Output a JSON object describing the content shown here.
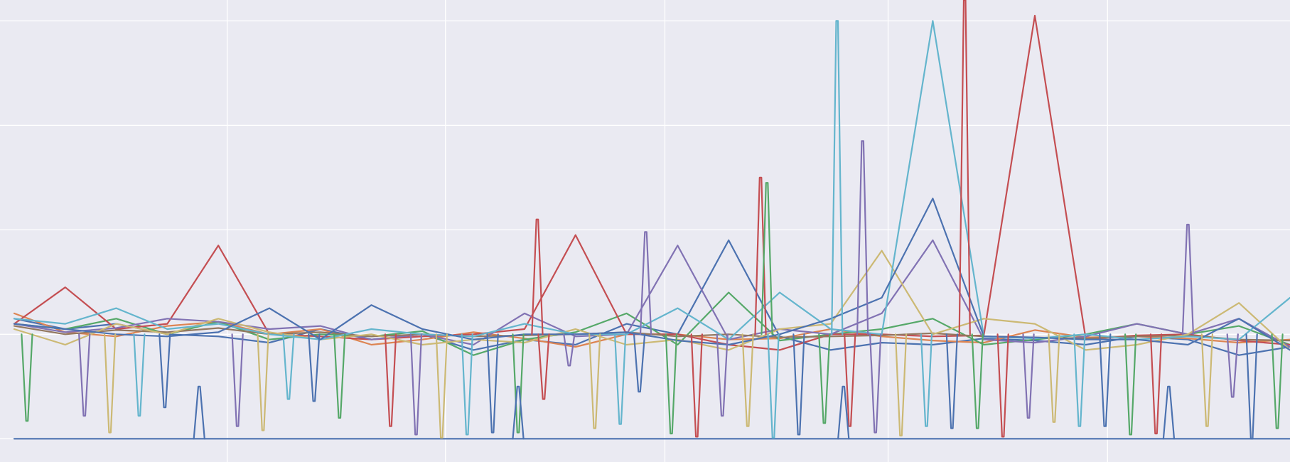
{
  "chart_data": {
    "type": "line",
    "title": "",
    "xlabel": "",
    "ylabel": "",
    "tick_labels_visible": false,
    "grid": "on",
    "legend": "none",
    "background_color": "#eaeaf2",
    "grid_color": "#ffffff",
    "xlim": [
      0,
      100
    ],
    "ylim": [
      -0.1,
      4.2
    ],
    "x_gridlines": [
      16.7,
      33.8,
      51.0,
      68.5,
      85.7
    ],
    "y_gridlines": [
      0,
      1,
      2,
      3,
      4
    ],
    "x": [
      0,
      4,
      8,
      12,
      16,
      20,
      24,
      28,
      32,
      36,
      40,
      44,
      48,
      52,
      56,
      60,
      64,
      68,
      72,
      76,
      80,
      84,
      88,
      92,
      96,
      100
    ],
    "series": [
      {
        "color": "#4c72b0",
        "values": [
          1.15,
          1.05,
          1.1,
          1.0,
          0.98,
          0.92,
          1.05,
          0.95,
          1.0,
          0.85,
          0.95,
          0.9,
          1.1,
          1.0,
          1.9,
          0.98,
          0.85,
          0.92,
          0.9,
          0.96,
          0.94,
          0.9,
          0.98,
          0.95,
          0.8,
          0.88
        ]
      },
      {
        "color": "#dd8452",
        "values": [
          1.2,
          1.02,
          0.98,
          1.08,
          1.12,
          1.0,
          1.05,
          0.9,
          0.95,
          1.02,
          0.96,
          0.88,
          1.0,
          1.0,
          0.95,
          0.96,
          1.05,
          0.98,
          0.94,
          0.92,
          1.04,
          0.97,
          0.98,
          0.96,
          0.92,
          0.95
        ]
      },
      {
        "color": "#55a868",
        "values": [
          1.1,
          1.05,
          1.15,
          1.0,
          1.12,
          0.95,
          1.0,
          0.98,
          1.03,
          0.8,
          0.95,
          1.02,
          1.2,
          0.9,
          1.4,
          0.94,
          1.0,
          1.05,
          1.15,
          0.9,
          0.95,
          1.0,
          1.1,
          1.0,
          1.08,
          0.9
        ]
      },
      {
        "color": "#c44e52",
        "values": [
          1.1,
          1.45,
          1.05,
          1.1,
          1.85,
          1.0,
          0.98,
          0.95,
          0.98,
          1.0,
          1.05,
          1.95,
          1.0,
          1.0,
          0.9,
          0.85,
          1.0,
          1.0,
          0.98,
          0.99,
          4.05,
          0.95,
          0.99,
          1.0,
          0.94,
          0.9
        ]
      },
      {
        "color": "#8172b3",
        "values": [
          1.1,
          1.02,
          1.06,
          1.15,
          1.12,
          1.05,
          1.08,
          0.95,
          1.0,
          0.9,
          1.2,
          0.98,
          1.0,
          1.85,
          0.95,
          1.05,
          1.0,
          1.2,
          1.9,
          0.95,
          0.92,
          0.98,
          1.1,
          1.0,
          1.15,
          0.88
        ]
      },
      {
        "color": "#937860",
        "values": [
          1.08,
          1.0,
          1.04,
          1.02,
          1.06,
          1.0,
          1.02,
          0.98,
          1.0,
          0.98,
          0.99,
          1.0,
          1.02,
          0.98,
          1.0,
          0.97,
          0.98,
          0.99,
          1.01,
          0.98,
          0.97,
          0.96,
          0.98,
          0.99,
          0.95,
          0.94
        ]
      },
      {
        "color": "#ccb974",
        "values": [
          1.05,
          0.9,
          1.1,
          1.0,
          1.15,
          1.02,
          0.95,
          1.0,
          0.9,
          0.95,
          0.92,
          1.05,
          0.9,
          0.95,
          0.85,
          1.05,
          1.1,
          1.8,
          1.0,
          1.15,
          1.1,
          0.85,
          0.9,
          1.0,
          1.3,
          0.85
        ]
      },
      {
        "color": "#64b5cd",
        "values": [
          1.15,
          1.1,
          1.25,
          1.05,
          1.1,
          1.0,
          0.95,
          1.05,
          1.0,
          0.98,
          1.1,
          1.0,
          1.0,
          1.25,
          0.95,
          1.4,
          1.05,
          1.0,
          4.0,
          0.98,
          0.96,
          1.0,
          0.95,
          0.98,
          0.95,
          1.35
        ]
      },
      {
        "color": "#4c72b0",
        "values": [
          1.1,
          1.05,
          1.0,
          0.98,
          1.02,
          1.25,
          0.95,
          1.28,
          1.05,
          0.95,
          1.0,
          1.0,
          1.02,
          0.94,
          0.9,
          1.0,
          1.15,
          1.35,
          2.3,
          0.98,
          0.97,
          0.95,
          0.95,
          0.9,
          1.15,
          0.85
        ]
      },
      {
        "color": "#4c72b0",
        "values": [
          0,
          0,
          0,
          0,
          0,
          0,
          0,
          0,
          0,
          0,
          0,
          0,
          0,
          0,
          0,
          0,
          0,
          0,
          0,
          0,
          0,
          0,
          0,
          0,
          0,
          0
        ]
      }
    ],
    "spikes": [
      {
        "series_color": "#4c72b0",
        "x": 14.5,
        "y": 0.5
      },
      {
        "series_color": "#4c72b0",
        "x": 39.5,
        "y": 0.5
      },
      {
        "series_color": "#4c72b0",
        "x": 65.0,
        "y": 0.5
      },
      {
        "series_color": "#4c72b0",
        "x": 90.5,
        "y": 0.5
      },
      {
        "series_color": "#c44e52",
        "x": 74.5,
        "y": 4.2
      },
      {
        "series_color": "#64b5cd",
        "x": 64.5,
        "y": 4.0
      },
      {
        "series_color": "#8172b3",
        "x": 66.5,
        "y": 2.85
      },
      {
        "series_color": "#c44e52",
        "x": 58.5,
        "y": 2.5
      },
      {
        "series_color": "#55a868",
        "x": 59.0,
        "y": 2.45
      },
      {
        "series_color": "#8172b3",
        "x": 49.5,
        "y": 1.98
      },
      {
        "series_color": "#c44e52",
        "x": 41.0,
        "y": 2.1
      },
      {
        "series_color": "#8172b3",
        "x": 92.0,
        "y": 2.05
      }
    ],
    "drops": [
      {
        "series_color": "#55a868",
        "x": 1.0,
        "y": 0.17
      },
      {
        "series_color": "#8172b3",
        "x": 5.5,
        "y": 0.22
      },
      {
        "series_color": "#ccb974",
        "x": 7.5,
        "y": 0.06
      },
      {
        "series_color": "#64b5cd",
        "x": 9.8,
        "y": 0.22
      },
      {
        "series_color": "#4c72b0",
        "x": 11.8,
        "y": 0.3
      },
      {
        "series_color": "#8172b3",
        "x": 17.5,
        "y": 0.12
      },
      {
        "series_color": "#ccb974",
        "x": 19.5,
        "y": 0.08
      },
      {
        "series_color": "#64b5cd",
        "x": 21.5,
        "y": 0.38
      },
      {
        "series_color": "#4c72b0",
        "x": 23.5,
        "y": 0.36
      },
      {
        "series_color": "#55a868",
        "x": 25.5,
        "y": 0.2
      },
      {
        "series_color": "#c44e52",
        "x": 29.5,
        "y": 0.12
      },
      {
        "series_color": "#8172b3",
        "x": 31.5,
        "y": 0.04
      },
      {
        "series_color": "#ccb974",
        "x": 33.5,
        "y": 0.01
      },
      {
        "series_color": "#64b5cd",
        "x": 35.5,
        "y": 0.04
      },
      {
        "series_color": "#4c72b0",
        "x": 37.5,
        "y": 0.06
      },
      {
        "series_color": "#55a868",
        "x": 39.5,
        "y": 0.06
      },
      {
        "series_color": "#c44e52",
        "x": 41.5,
        "y": 0.38
      },
      {
        "series_color": "#8172b3",
        "x": 43.5,
        "y": 0.7
      },
      {
        "series_color": "#ccb974",
        "x": 45.5,
        "y": 0.1
      },
      {
        "series_color": "#64b5cd",
        "x": 47.5,
        "y": 0.14
      },
      {
        "series_color": "#4c72b0",
        "x": 49.0,
        "y": 0.45
      },
      {
        "series_color": "#55a868",
        "x": 51.5,
        "y": 0.05
      },
      {
        "series_color": "#c44e52",
        "x": 53.5,
        "y": 0.02
      },
      {
        "series_color": "#8172b3",
        "x": 55.5,
        "y": 0.22
      },
      {
        "series_color": "#ccb974",
        "x": 57.5,
        "y": 0.12
      },
      {
        "series_color": "#64b5cd",
        "x": 59.5,
        "y": 0.01
      },
      {
        "series_color": "#4c72b0",
        "x": 61.5,
        "y": 0.04
      },
      {
        "series_color": "#55a868",
        "x": 63.5,
        "y": 0.15
      },
      {
        "series_color": "#c44e52",
        "x": 65.5,
        "y": 0.12
      },
      {
        "series_color": "#8172b3",
        "x": 67.5,
        "y": 0.06
      },
      {
        "series_color": "#ccb974",
        "x": 69.5,
        "y": 0.03
      },
      {
        "series_color": "#64b5cd",
        "x": 71.5,
        "y": 0.12
      },
      {
        "series_color": "#4c72b0",
        "x": 73.5,
        "y": 0.1
      },
      {
        "series_color": "#55a868",
        "x": 75.5,
        "y": 0.1
      },
      {
        "series_color": "#c44e52",
        "x": 77.5,
        "y": 0.02
      },
      {
        "series_color": "#8172b3",
        "x": 79.5,
        "y": 0.2
      },
      {
        "series_color": "#ccb974",
        "x": 81.5,
        "y": 0.16
      },
      {
        "series_color": "#64b5cd",
        "x": 83.5,
        "y": 0.12
      },
      {
        "series_color": "#4c72b0",
        "x": 85.5,
        "y": 0.12
      },
      {
        "series_color": "#55a868",
        "x": 87.5,
        "y": 0.04
      },
      {
        "series_color": "#c44e52",
        "x": 89.5,
        "y": 0.05
      },
      {
        "series_color": "#ccb974",
        "x": 93.5,
        "y": 0.12
      },
      {
        "series_color": "#8172b3",
        "x": 95.5,
        "y": 0.4
      },
      {
        "series_color": "#4c72b0",
        "x": 97.0,
        "y": 0.0
      },
      {
        "series_color": "#55a868",
        "x": 99.0,
        "y": 0.1
      }
    ]
  }
}
